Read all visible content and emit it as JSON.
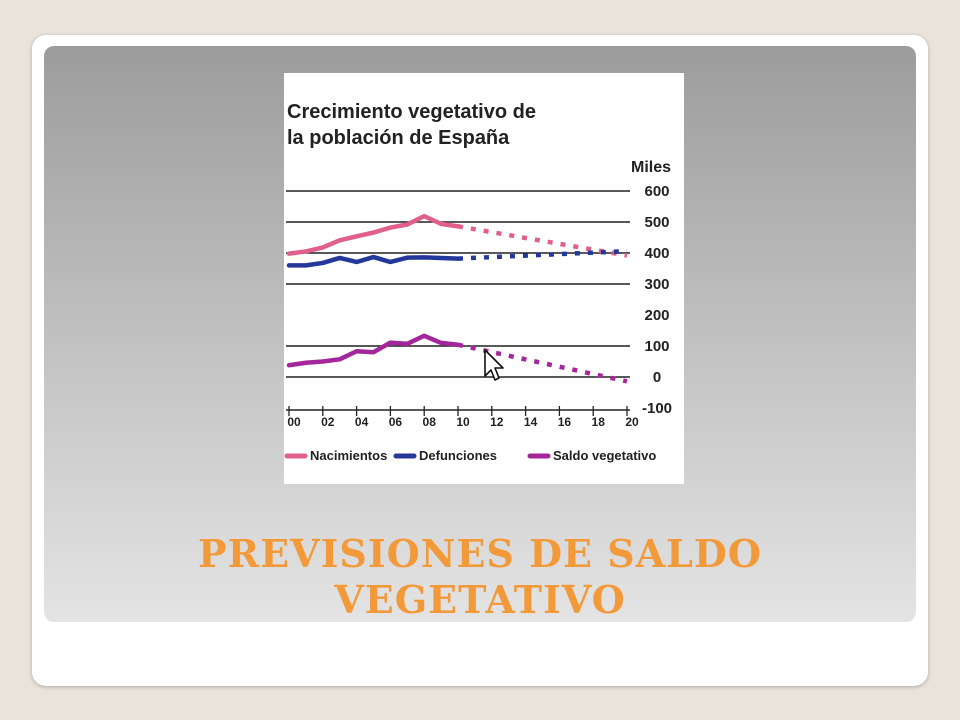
{
  "slide": {
    "title_line1": "PREVISIONES DE SALDO",
    "title_line2": "VEGETATIVO"
  },
  "colors": {
    "background": "#e9e3da",
    "title": "#f29a3a",
    "nacimientos": "#e0608a",
    "defunciones": "#24379a",
    "saldo": "#a3279a"
  },
  "chart_data": {
    "type": "line",
    "title_line1": "Crecimiento vegetativo de",
    "title_line2": "la población de España",
    "unit_label": "Miles",
    "x_tick_labels": [
      "00",
      "02",
      "04",
      "06",
      "08",
      "10",
      "12",
      "14",
      "16",
      "18",
      "20"
    ],
    "y_tick_labels": [
      "600",
      "500",
      "400",
      "300",
      "200",
      "100",
      "0",
      "-100"
    ],
    "x_range": [
      2000,
      2020
    ],
    "ylim": [
      -100,
      600
    ],
    "y_gridlines": [
      600,
      500,
      400,
      300,
      100,
      0
    ],
    "grid": true,
    "legend_position": "bottom",
    "series": [
      {
        "name": "Nacimientos",
        "color": "#e0608a",
        "actual": {
          "x": [
            2000,
            2001,
            2002,
            2003,
            2004,
            2005,
            2006,
            2007,
            2008,
            2009,
            2010
          ],
          "y": [
            398,
            405,
            418,
            441,
            454,
            466,
            482,
            492,
            519,
            494,
            486
          ]
        },
        "projection": {
          "x": [
            2010,
            2020
          ],
          "y": [
            486,
            392
          ]
        }
      },
      {
        "name": "Defunciones",
        "color": "#24379a",
        "actual": {
          "x": [
            2000,
            2001,
            2002,
            2003,
            2004,
            2005,
            2006,
            2007,
            2008,
            2009,
            2010
          ],
          "y": [
            360,
            360,
            368,
            384,
            371,
            387,
            371,
            385,
            386,
            384,
            382
          ]
        },
        "projection": {
          "x": [
            2010,
            2020
          ],
          "y": [
            382,
            406
          ]
        }
      },
      {
        "name": "Saldo vegetativo",
        "color": "#a3279a",
        "actual": {
          "x": [
            2000,
            2001,
            2002,
            2003,
            2004,
            2005,
            2006,
            2007,
            2008,
            2009,
            2010
          ],
          "y": [
            38,
            46,
            50,
            57,
            83,
            80,
            111,
            107,
            133,
            110,
            104
          ]
        },
        "projection": {
          "x": [
            2010,
            2020
          ],
          "y": [
            104,
            -14
          ]
        }
      }
    ]
  }
}
